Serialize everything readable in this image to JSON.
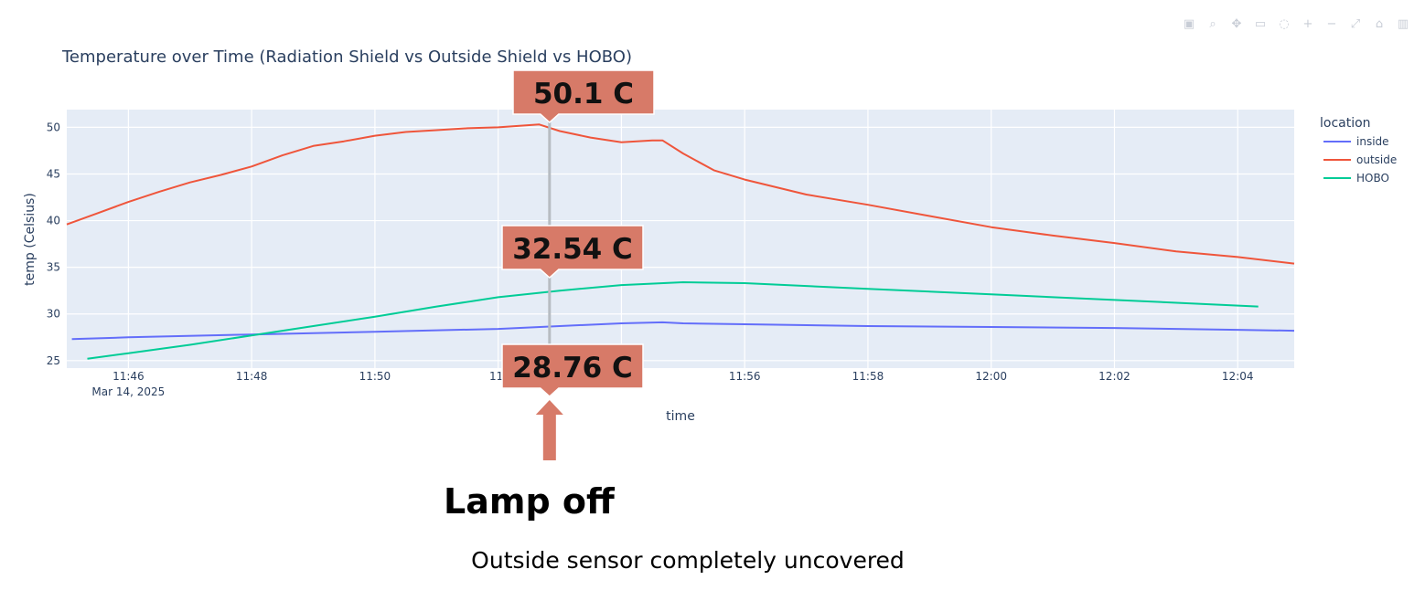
{
  "modebar": [
    {
      "name": "camera-icon",
      "glyph": "▣"
    },
    {
      "name": "zoom-icon",
      "glyph": "⌕"
    },
    {
      "name": "pan-icon",
      "glyph": "✥"
    },
    {
      "name": "box-select-icon",
      "glyph": "▭"
    },
    {
      "name": "lasso-icon",
      "glyph": "◌"
    },
    {
      "name": "zoom-in-icon",
      "glyph": "+"
    },
    {
      "name": "zoom-out-icon",
      "glyph": "−"
    },
    {
      "name": "autoscale-icon",
      "glyph": "⤢"
    },
    {
      "name": "home-icon",
      "glyph": "⌂"
    },
    {
      "name": "plotly-logo-icon",
      "glyph": "▥"
    }
  ],
  "colors": {
    "plot_bg": "#e5ecf6",
    "grid": "#ffffff",
    "inside": "#636efa",
    "outside": "#ef553b",
    "HOBO": "#00cc96",
    "callout": "#d77a68",
    "title": "#2a3f5f"
  },
  "chart_data": {
    "type": "line",
    "title": "Temperature over Time (Radiation Shield vs Outside Shield vs HOBO)",
    "xlabel": "time",
    "ylabel": "temp (Celsius)",
    "x_range_minutes": [
      "11:45:00",
      "12:04:55"
    ],
    "xlim": [
      "11:45:00",
      "12:04:55"
    ],
    "ylim": [
      24.2,
      51.9
    ],
    "x_ticks": [
      {
        "t": "11:46",
        "label": "11:46",
        "sublabel": "Mar 14, 2025"
      },
      {
        "t": "11:48",
        "label": "11:48"
      },
      {
        "t": "11:50",
        "label": "11:50"
      },
      {
        "t": "11:52",
        "label": "11:"
      },
      {
        "t": "11:54",
        "label": ""
      },
      {
        "t": "11:56",
        "label": "11:56"
      },
      {
        "t": "11:58",
        "label": "11:58"
      },
      {
        "t": "12:00",
        "label": "12:00"
      },
      {
        "t": "12:02",
        "label": "12:02"
      },
      {
        "t": "12:04",
        "label": "12:04"
      }
    ],
    "y_ticks": [
      25,
      30,
      35,
      40,
      45,
      50
    ],
    "grid": true,
    "legend": {
      "title": "location",
      "placement": "right"
    },
    "series": [
      {
        "name": "inside",
        "points": [
          [
            "11:45:05",
            27.3
          ],
          [
            "11:46:00",
            27.5
          ],
          [
            "11:48:00",
            27.8
          ],
          [
            "11:50:00",
            28.1
          ],
          [
            "11:52:00",
            28.4
          ],
          [
            "11:53:00",
            28.7
          ],
          [
            "11:54:00",
            29.0
          ],
          [
            "11:54:40",
            29.1
          ],
          [
            "11:55:00",
            29.0
          ],
          [
            "11:56:00",
            28.9
          ],
          [
            "11:58:00",
            28.7
          ],
          [
            "12:00:00",
            28.6
          ],
          [
            "12:02:00",
            28.5
          ],
          [
            "12:04:00",
            28.3
          ],
          [
            "12:04:55",
            28.2
          ]
        ]
      },
      {
        "name": "outside",
        "points": [
          [
            "11:45:00",
            39.6
          ],
          [
            "11:45:30",
            40.8
          ],
          [
            "11:46:00",
            42.0
          ],
          [
            "11:46:30",
            43.1
          ],
          [
            "11:47:00",
            44.1
          ],
          [
            "11:47:30",
            44.9
          ],
          [
            "11:48:00",
            45.8
          ],
          [
            "11:48:30",
            47.0
          ],
          [
            "11:49:00",
            48.0
          ],
          [
            "11:49:30",
            48.5
          ],
          [
            "11:50:00",
            49.1
          ],
          [
            "11:50:30",
            49.5
          ],
          [
            "11:51:00",
            49.7
          ],
          [
            "11:51:30",
            49.9
          ],
          [
            "11:52:00",
            50.0
          ],
          [
            "11:52:40",
            50.3
          ],
          [
            "11:53:00",
            49.6
          ],
          [
            "11:53:30",
            48.9
          ],
          [
            "11:54:00",
            48.4
          ],
          [
            "11:54:30",
            48.6
          ],
          [
            "11:54:40",
            48.6
          ],
          [
            "11:55:00",
            47.2
          ],
          [
            "11:55:30",
            45.4
          ],
          [
            "11:56:00",
            44.4
          ],
          [
            "11:57:00",
            42.8
          ],
          [
            "11:58:00",
            41.7
          ],
          [
            "11:59:00",
            40.5
          ],
          [
            "12:00:00",
            39.3
          ],
          [
            "12:01:00",
            38.4
          ],
          [
            "12:02:00",
            37.6
          ],
          [
            "12:03:00",
            36.7
          ],
          [
            "12:04:00",
            36.1
          ],
          [
            "12:04:55",
            35.4
          ]
        ]
      },
      {
        "name": "HOBO",
        "points": [
          [
            "11:45:20",
            25.2
          ],
          [
            "11:46:00",
            25.8
          ],
          [
            "11:47:00",
            26.7
          ],
          [
            "11:48:00",
            27.7
          ],
          [
            "11:49:00",
            28.7
          ],
          [
            "11:50:00",
            29.7
          ],
          [
            "11:51:00",
            30.8
          ],
          [
            "11:52:00",
            31.8
          ],
          [
            "11:53:00",
            32.5
          ],
          [
            "11:54:00",
            33.1
          ],
          [
            "11:55:00",
            33.4
          ],
          [
            "11:56:00",
            33.3
          ],
          [
            "11:58:00",
            32.7
          ],
          [
            "12:00:00",
            32.1
          ],
          [
            "12:02:00",
            31.5
          ],
          [
            "12:04:20",
            30.8
          ]
        ]
      }
    ],
    "marker_time": "11:52:50",
    "callouts": [
      {
        "label": "50.1 C",
        "value": 50.1,
        "series": "outside"
      },
      {
        "label": "32.54 C",
        "value": 32.54,
        "series": "HOBO"
      },
      {
        "label": "28.76 C",
        "value": 28.76,
        "series": "inside"
      }
    ]
  },
  "annotation": {
    "heading": "Lamp off",
    "caption": "Outside sensor completely uncovered"
  }
}
